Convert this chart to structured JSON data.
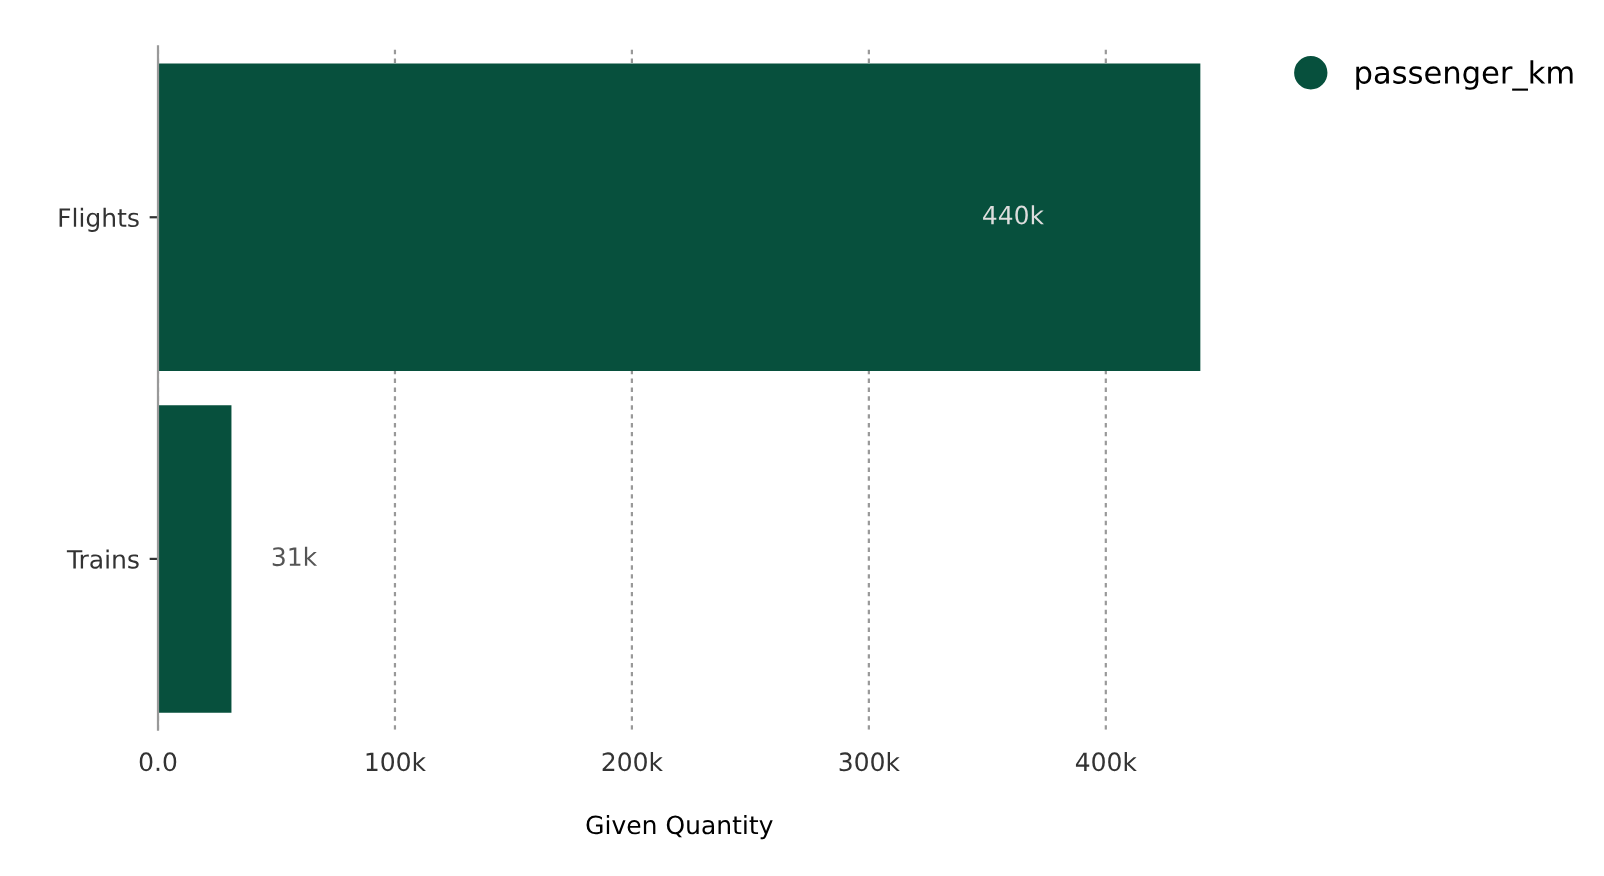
{
  "chart_data": {
    "type": "bar",
    "orientation": "horizontal",
    "xlabel": "Given Quantity",
    "categories": [
      "Flights",
      "Trains"
    ],
    "series": [
      {
        "name": "passenger_km",
        "color": "#07503d",
        "values": [
          440000,
          31000
        ],
        "value_labels": [
          "440k",
          "31k"
        ]
      }
    ],
    "xlim": [
      0,
      440000
    ],
    "xticks": [
      {
        "value": 0,
        "label": "0.0"
      },
      {
        "value": 100000,
        "label": "100k"
      },
      {
        "value": 200000,
        "label": "200k"
      },
      {
        "value": 300000,
        "label": "300k"
      },
      {
        "value": 400000,
        "label": "400k"
      }
    ],
    "grid": "x",
    "legend": "top right"
  }
}
